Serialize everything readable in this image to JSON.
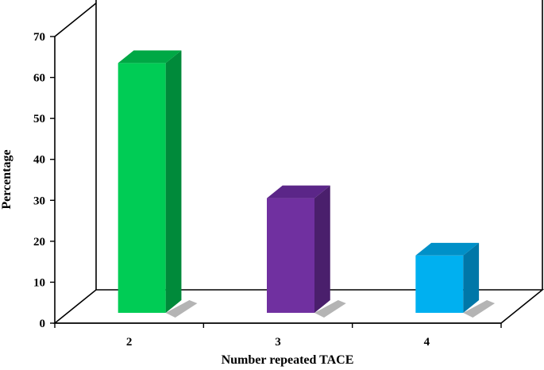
{
  "chart_data": {
    "type": "bar",
    "categories": [
      "2",
      "3",
      "4"
    ],
    "values": [
      61,
      28,
      14
    ],
    "colors": [
      {
        "front": "#00cc55",
        "side": "#008a3a",
        "top": "#00a845"
      },
      {
        "front": "#7030a0",
        "side": "#4a1f6c",
        "top": "#5b2688"
      },
      {
        "front": "#00b0f0",
        "side": "#0077a8",
        "top": "#0090c8"
      }
    ],
    "xlabel": "Number repeated TACE",
    "ylabel": "Percentage",
    "ylim": [
      0,
      70
    ],
    "yticks": [
      "0",
      "10",
      "20",
      "30",
      "40",
      "50",
      "60",
      "70"
    ],
    "grid": false,
    "style": "3d-bar"
  }
}
